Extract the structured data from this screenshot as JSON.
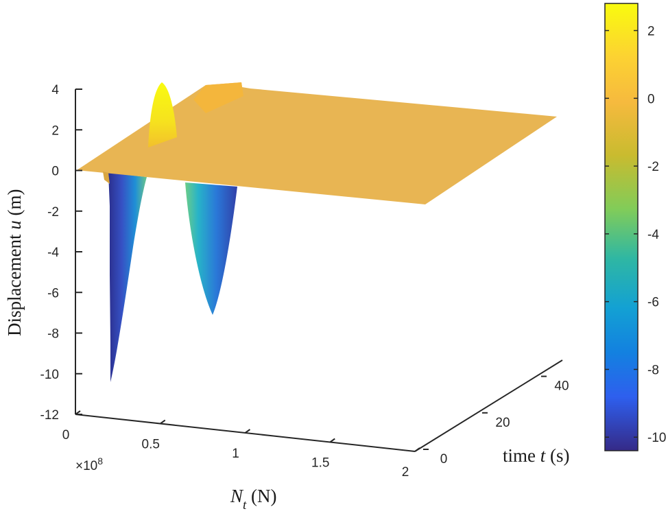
{
  "chart_data": {
    "type": "surface",
    "title": "",
    "z_axis": {
      "label_prefix": "Displacement ",
      "label_var": "u",
      "label_suffix": " (m)",
      "ticks": [
        "4",
        "2",
        "0",
        "-2",
        "-4",
        "-6",
        "-8",
        "-10",
        "-12"
      ],
      "range": [
        -12,
        4
      ]
    },
    "x_axis": {
      "label_var": "N",
      "label_sub": "t",
      "label_suffix": " (N)",
      "ticks": [
        "0",
        "0.5",
        "1",
        "1.5",
        "2"
      ],
      "multiplier": "×10",
      "multiplier_exp": "8",
      "range": [
        0,
        2
      ]
    },
    "y_axis": {
      "label_prefix": "time ",
      "label_var": "t",
      "label_suffix": " (s)",
      "ticks": [
        "0",
        "20",
        "40"
      ],
      "range": [
        0,
        50
      ]
    },
    "colorbar": {
      "ticks": [
        "2",
        "0",
        "-2",
        "-4",
        "-6",
        "-8",
        "-10"
      ],
      "range": [
        -10.4,
        2.8
      ],
      "colormap": "parula"
    },
    "surface_features": {
      "plateau_value": 0,
      "positive_peak": {
        "Nt_x1e8": 0.25,
        "max_u": 4.3
      },
      "negative_troughs": [
        {
          "Nt_x1e8": 0.12,
          "min_u": -10.4
        },
        {
          "Nt_x1e8": 0.72,
          "min_u": -7.1
        }
      ]
    },
    "grid": false
  },
  "colors": {
    "plateau": "#e8b553",
    "plateau_edge": "#d9a640",
    "peak_top": "#f8fa0d",
    "peak_base": "#f2c22a",
    "ridge": "#f4b63c",
    "trough_deep": "#332f9c",
    "trough_mid": "#1a9bdc",
    "trough_shallow": "#7cc878",
    "axis": "#262626"
  }
}
